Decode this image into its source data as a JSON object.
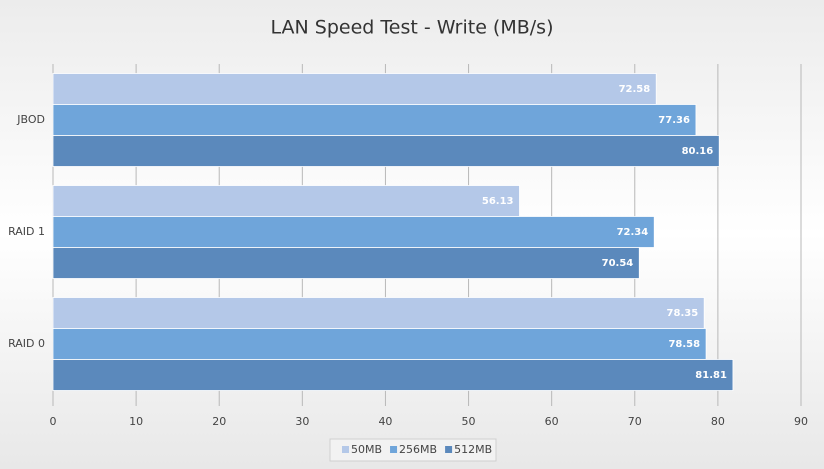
{
  "chart_data": {
    "type": "bar",
    "orientation": "horizontal",
    "title": "LAN Speed Test - Write (MB/s)",
    "categories": [
      "JBOD",
      "RAID 1",
      "RAID 0"
    ],
    "series": [
      {
        "name": "50MB",
        "color": "#b4c8e8",
        "values": [
          72.58,
          56.13,
          78.35
        ]
      },
      {
        "name": "256MB",
        "color": "#6fa5da",
        "values": [
          77.36,
          72.34,
          78.58
        ]
      },
      {
        "name": "512MB",
        "color": "#5b89bc",
        "values": [
          80.16,
          70.54,
          81.81
        ]
      }
    ],
    "xlim": [
      0,
      90
    ],
    "xticks": [
      0,
      10,
      20,
      30,
      40,
      50,
      60,
      70,
      80,
      90
    ],
    "grid": true,
    "legend": "bottom"
  }
}
